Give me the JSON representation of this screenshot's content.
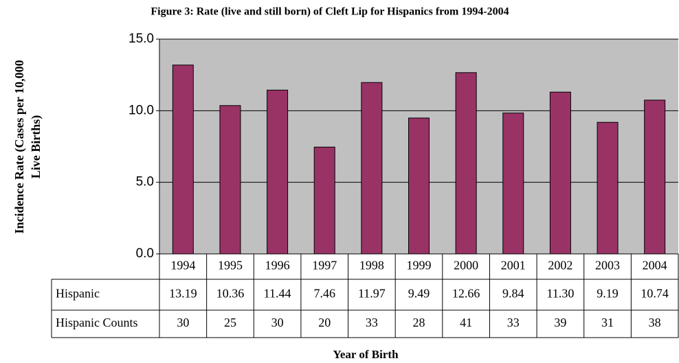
{
  "chart_data": {
    "type": "bar",
    "title": "Figure 3: Rate (live and still born) of Cleft Lip for Hispanics from 1994-2004",
    "ylabel": [
      "Incidence Rate (Cases per 10,000",
      "Live Births)"
    ],
    "xlabel": "Year of Birth",
    "categories": [
      "1994",
      "1995",
      "1996",
      "1997",
      "1998",
      "1999",
      "2000",
      "2001",
      "2002",
      "2003",
      "2004"
    ],
    "series": [
      {
        "name": "Hispanic",
        "color": "#993366",
        "values": [
          13.19,
          10.36,
          11.44,
          7.46,
          11.97,
          9.49,
          12.66,
          9.84,
          11.3,
          9.19,
          10.74
        ],
        "value_labels": [
          "13.19",
          "10.36",
          "11.44",
          "7.46",
          "11.97",
          "9.49",
          "12.66",
          "9.84",
          "11.30",
          "9.19",
          "10.74"
        ]
      }
    ],
    "counts": {
      "name": "Hispanic Counts",
      "values": [
        30,
        25,
        30,
        20,
        33,
        28,
        41,
        33,
        39,
        31,
        38
      ]
    },
    "ylim": [
      0,
      15
    ],
    "yticks": [
      {
        "value": 0,
        "label": "0.0"
      },
      {
        "value": 5,
        "label": "5.0"
      },
      {
        "value": 10,
        "label": "10.0"
      },
      {
        "value": 15,
        "label": "15.0"
      }
    ],
    "grid": true
  }
}
